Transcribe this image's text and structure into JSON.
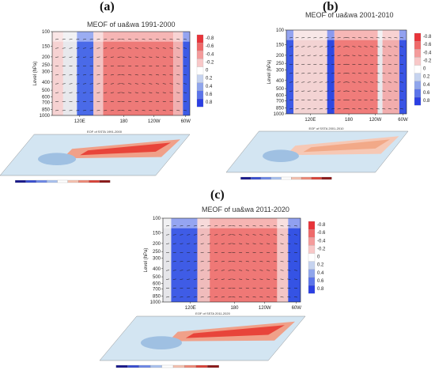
{
  "panels": [
    {
      "id": "a",
      "label": "(a)",
      "title": "MEOF of ua&wa 1991-2000",
      "map_title": "EOF of SSTA 1991-2000"
    },
    {
      "id": "b",
      "label": "(b)",
      "title": "MEOF of ua&wa 2001-2010",
      "map_title": "EOF of SSTA 2001-2010"
    },
    {
      "id": "c",
      "label": "(c)",
      "title": "MEOF of ua&wa 2011-2020",
      "map_title": "EOF of SSTA 2011-2020"
    }
  ],
  "chart_data": [
    {
      "type": "heatmap",
      "title": "MEOF of ua&wa 1991-2000",
      "ylabel": "Level (hPa)",
      "y_ticks": [
        "100",
        "150",
        "200",
        "250",
        "300",
        "400",
        "500",
        "600",
        "700",
        "850",
        "1000"
      ],
      "x_ticks": [
        "120E",
        "180",
        "120W",
        "60W"
      ],
      "colorbar_ticks": [
        "-0.8",
        "-0.6",
        "-0.4",
        "-0.2",
        "0",
        "0.2",
        "0.4",
        "0.6",
        "0.8"
      ],
      "colorbar_colors": [
        "#e8343a",
        "#ef6a6a",
        "#f49b9b",
        "#f8c8c8",
        "#ffffff",
        "#c6d3ef",
        "#8fa5ec",
        "#5b74ea",
        "#2b3fe3"
      ],
      "grid": false
    },
    {
      "type": "heatmap",
      "title": "MEOF of ua&wa 2001-2010",
      "ylabel": "Level (hPa)",
      "y_ticks": [
        "100",
        "150",
        "200",
        "250",
        "300",
        "400",
        "500",
        "600",
        "700",
        "850",
        "1000"
      ],
      "x_ticks": [
        "120E",
        "180",
        "120W",
        "60W"
      ],
      "colorbar_ticks": [
        "-0.8",
        "-0.6",
        "-0.4",
        "-0.2",
        "0",
        "0.2",
        "0.4",
        "0.6",
        "0.8"
      ],
      "colorbar_colors": [
        "#e8343a",
        "#ef6a6a",
        "#f49b9b",
        "#f8c8c8",
        "#ffffff",
        "#c6d3ef",
        "#8fa5ec",
        "#5b74ea",
        "#2b3fe3"
      ],
      "grid": false
    },
    {
      "type": "heatmap",
      "title": "MEOF of ua&wa 2011-2020",
      "ylabel": "Level (hPa)",
      "y_ticks": [
        "100",
        "150",
        "200",
        "250",
        "300",
        "400",
        "500",
        "600",
        "700",
        "850",
        "1000"
      ],
      "x_ticks": [
        "120E",
        "180",
        "120W",
        "60W"
      ],
      "colorbar_ticks": [
        "-0.8",
        "-0.6",
        "-0.4",
        "-0.2",
        "0",
        "0.2",
        "0.4",
        "0.6",
        "0.8"
      ],
      "colorbar_colors": [
        "#e8343a",
        "#ef6a6a",
        "#f49b9b",
        "#f8c8c8",
        "#ffffff",
        "#c6d3ef",
        "#8fa5ec",
        "#5b74ea",
        "#2b3fe3"
      ],
      "grid": false
    }
  ]
}
